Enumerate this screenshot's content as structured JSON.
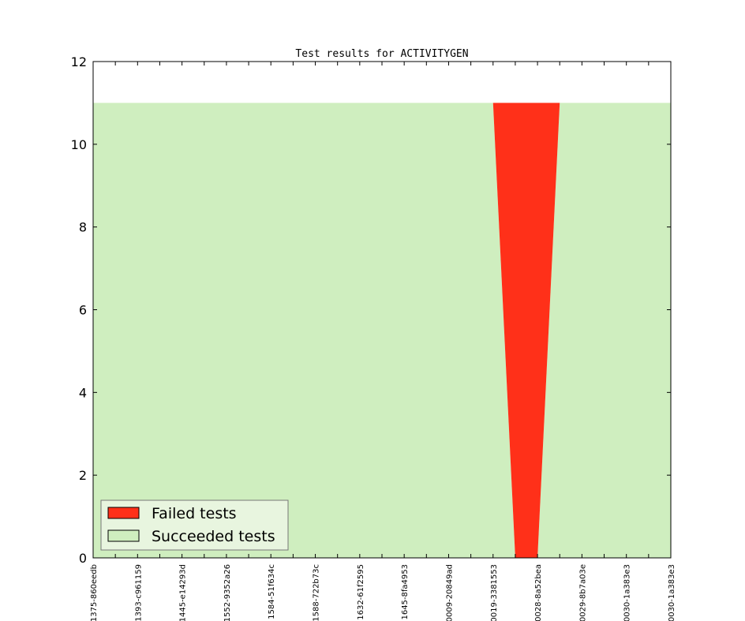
{
  "chart_data": {
    "type": "stackedarea",
    "title": "Test results for ACTIVITYGEN",
    "categories": [
      "1375-860eedb",
      null,
      "1393-c961159",
      null,
      "1445-e14293d",
      null,
      "1552-9352a26",
      null,
      "1584-51f634c",
      null,
      "1588-722b73c",
      null,
      "1632-61f2595",
      null,
      "1645-8fa4953",
      null,
      "0009-20849ad",
      null,
      "0019-3381553",
      null,
      "0028-8a52bea",
      null,
      "0029-8b7a03e",
      null,
      "0030-1a383e3",
      null,
      "0030-1a383e3"
    ],
    "series": [
      {
        "name": "Failed tests",
        "color": "#ff3019",
        "values": [
          0,
          0,
          0,
          0,
          0,
          0,
          0,
          0,
          0,
          0,
          0,
          0,
          0,
          0,
          0,
          0,
          0,
          0,
          0,
          11,
          11,
          0,
          0,
          0,
          0,
          0,
          0
        ]
      },
      {
        "name": "Succeeded tests",
        "color": "#cfeebf",
        "values": [
          11,
          11,
          11,
          11,
          11,
          11,
          11,
          11,
          11,
          11,
          11,
          11,
          11,
          11,
          11,
          11,
          11,
          11,
          11,
          0,
          0,
          11,
          11,
          11,
          11,
          11,
          11
        ]
      }
    ],
    "ylim": [
      0,
      12
    ],
    "yticks": [
      0,
      2,
      4,
      6,
      8,
      10,
      12
    ],
    "legend": "lower left"
  }
}
